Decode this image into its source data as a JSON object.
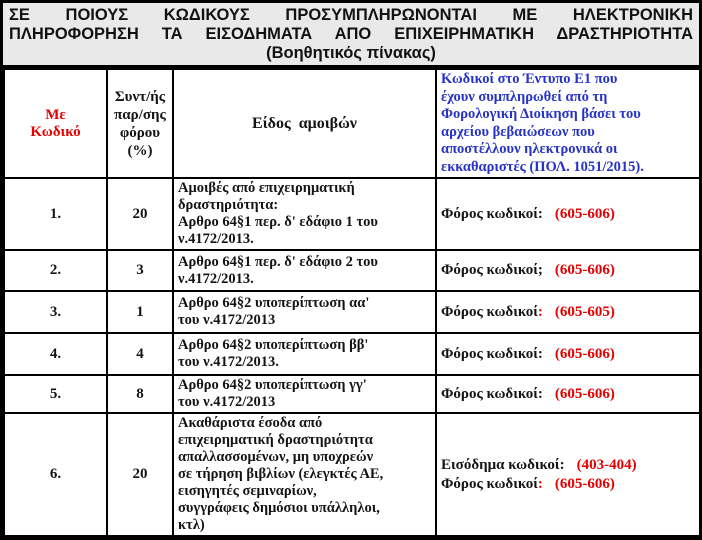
{
  "colors": {
    "red": "#e60000",
    "blue": "#2633c4",
    "ink": "#141414",
    "title_bg": "#e9e9e9",
    "border": "#000000"
  },
  "title": {
    "line1": "ΣΕ ΠΟΙΟΥΣ ΚΩΔΙΚΟΥΣ ΠΡΟΣΥΜΠΛΗΡΩΝΟΝΤΑΙ ΜΕ ΗΛΕΚΤΡΟΝΙΚΗ",
    "line2": "ΠΛΗΡΟΦΟΡΗΣΗ ΤΑ ΕΙΣΟΔΗΜΑΤΑ ΑΠΟ  ΕΠΙΧΕΙΡΗΜΑΤΙΚΗ ΔΡΑΣΤΗΡΙΟΤΗΤΑ",
    "line3": "(Βοηθητικός πίνακας)"
  },
  "table": {
    "headers": {
      "col1": "Με\nΚωδικό",
      "col2": "Συντ/ής\nπαρ/σης\nφόρου\n(%)",
      "col3": "Είδος  αμοιβών",
      "col4": "Κωδικοί στο Έντυπο Ε1 που\nέχουν συμπληρωθεί από τη\nΦορολογική Διοίκηση βάσει του\nαρχείου βεβαιώσεων που\nαποστέλλουν ηλεκτρονικά οι\nεκκαθαριστές (ΠΟΛ. 1051/2015)."
    },
    "rows": [
      {
        "code": "1.",
        "rate": "20",
        "type": "Αμοιβές από επιχειρηματική\nδραστηριότητα:\nΑρθρο 64§1 περ. δ' εδάφιο 1 του\nν.4172/2013.",
        "codes": [
          {
            "label": "Φόρος κωδικοί",
            "punct": ":",
            "punct_red": false,
            "value": "(605-606)"
          }
        ]
      },
      {
        "code": "2.",
        "rate": "3",
        "type": "Αρθρο 64§1 περ. δ' εδάφιο 2 του\nν.4172/2013.",
        "codes": [
          {
            "label": "Φόρος κωδικοί",
            "punct": ";",
            "punct_red": false,
            "value": "(605-606)"
          }
        ]
      },
      {
        "code": "3.",
        "rate": "1",
        "type": "Αρθρο 64§2 υποπερίπτωση αα'\nτου ν.4172/2013",
        "codes": [
          {
            "label": "Φόρος κωδικοί",
            "punct": ":",
            "punct_red": true,
            "value": "(605-605)"
          }
        ]
      },
      {
        "code": "4.",
        "rate": "4",
        "type": "Αρθρο 64§2 υποπερίπτωση ββ'\nτου ν.4172/2013.",
        "codes": [
          {
            "label": "Φόρος κωδικοί",
            "punct": ":",
            "punct_red": false,
            "value": "(605-606)"
          }
        ]
      },
      {
        "code": "5.",
        "rate": "8",
        "type": "Αρθρο 64§2 υποπερίπτωση γγ'\nτου ν.4172/2013",
        "codes": [
          {
            "label": "Φόρος κωδικοί",
            "punct": ":",
            "punct_red": false,
            "value": "(605-606)"
          }
        ]
      },
      {
        "code": "6.",
        "rate": "20",
        "type": "Ακαθάριστα έσοδα από\nεπιχειρηματική δραστηριότητα\nαπαλλασσομένων, μη υποχρεών\nσε τήρηση βιβλίων (ελεγκτές ΑΕ,\nεισηγητές σεμιναρίων,\nσυγγράφεις δημόσιοι υπάλληλοι,\nκτλ)",
        "codes": [
          {
            "label": "Εισόδημα κωδικοί",
            "punct": ":",
            "punct_red": false,
            "value": "(403-404)"
          },
          {
            "label": "Φόρος κωδικοί",
            "punct": ":",
            "punct_red": true,
            "value": "(605-606)"
          }
        ]
      }
    ]
  }
}
